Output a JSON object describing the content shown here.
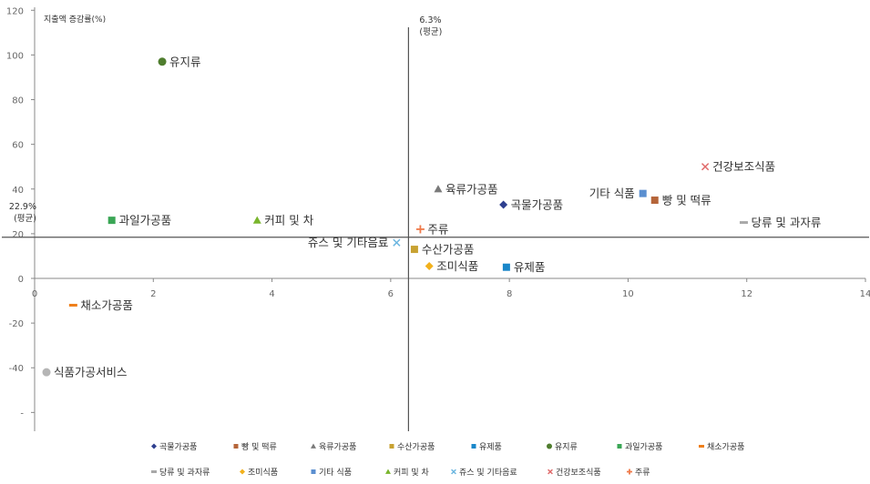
{
  "chart_data": {
    "type": "scatter",
    "title": "",
    "ylabel": "지출액 증감률(%)",
    "xlabel": "",
    "xlim": [
      0,
      14
    ],
    "ylim": [
      -60,
      120
    ],
    "xticks": [
      0,
      2,
      4,
      6,
      8,
      10,
      12,
      14
    ],
    "yticks": [
      -60,
      -40,
      -20,
      0,
      20,
      40,
      60,
      80,
      100,
      120
    ],
    "ytick_labels": [
      "-",
      "-40",
      "-20",
      "0",
      "20",
      "40",
      "60",
      "80",
      "100",
      "120"
    ],
    "grid": false,
    "legend_position": "bottom",
    "reference_lines": [
      {
        "axis": "x",
        "value": 6.3,
        "label": "6.3%",
        "sublabel": "(평균)"
      },
      {
        "axis": "y",
        "value": 22.9,
        "label": "22.9%",
        "sublabel": "(평균)"
      }
    ],
    "series": [
      {
        "name": "곡물가공품",
        "x": 7.9,
        "y": 33,
        "color": "#2e3f8f",
        "marker": "diamond"
      },
      {
        "name": "빵 및 떡류",
        "x": 10.45,
        "y": 35,
        "color": "#b5653a",
        "marker": "square"
      },
      {
        "name": "육류가공품",
        "x": 6.8,
        "y": 40,
        "color": "#7a7a7a",
        "marker": "triangle"
      },
      {
        "name": "수산가공품",
        "x": 6.4,
        "y": 13,
        "color": "#c8a232",
        "marker": "square"
      },
      {
        "name": "유제품",
        "x": 7.95,
        "y": 5,
        "color": "#1a87c9",
        "marker": "square"
      },
      {
        "name": "유지류",
        "x": 2.15,
        "y": 97,
        "color": "#4f7d2e",
        "marker": "circle"
      },
      {
        "name": "과일가공품",
        "x": 1.3,
        "y": 26,
        "color": "#3aa655",
        "marker": "square"
      },
      {
        "name": "채소가공품",
        "x": 0.65,
        "y": -12,
        "color": "#ef7f1a",
        "marker": "dash"
      },
      {
        "name": "당류 및 과자류",
        "x": 11.95,
        "y": 25,
        "color": "#a8a8a8",
        "marker": "dash"
      },
      {
        "name": "조미식품",
        "x": 6.65,
        "y": 5.5,
        "color": "#f2b11c",
        "marker": "diamond"
      },
      {
        "name": "기타 식품",
        "x": 10.25,
        "y": 38,
        "color": "#5b8fd0",
        "marker": "square"
      },
      {
        "name": "커피 및 차",
        "x": 3.75,
        "y": 26,
        "color": "#79b52c",
        "marker": "triangle"
      },
      {
        "name": "쥬스 및 기타음료",
        "x": 6.1,
        "y": 16,
        "color": "#6cb6e0",
        "marker": "x"
      },
      {
        "name": "건강보조식품",
        "x": 11.3,
        "y": 50,
        "color": "#e06b6b",
        "marker": "x"
      },
      {
        "name": "주류",
        "x": 6.5,
        "y": 22,
        "color": "#ef7a4a",
        "marker": "plus"
      },
      {
        "name": "식품가공서비스",
        "x": 0.2,
        "y": -42,
        "color": "#b5b5b5",
        "marker": "circle"
      }
    ]
  }
}
